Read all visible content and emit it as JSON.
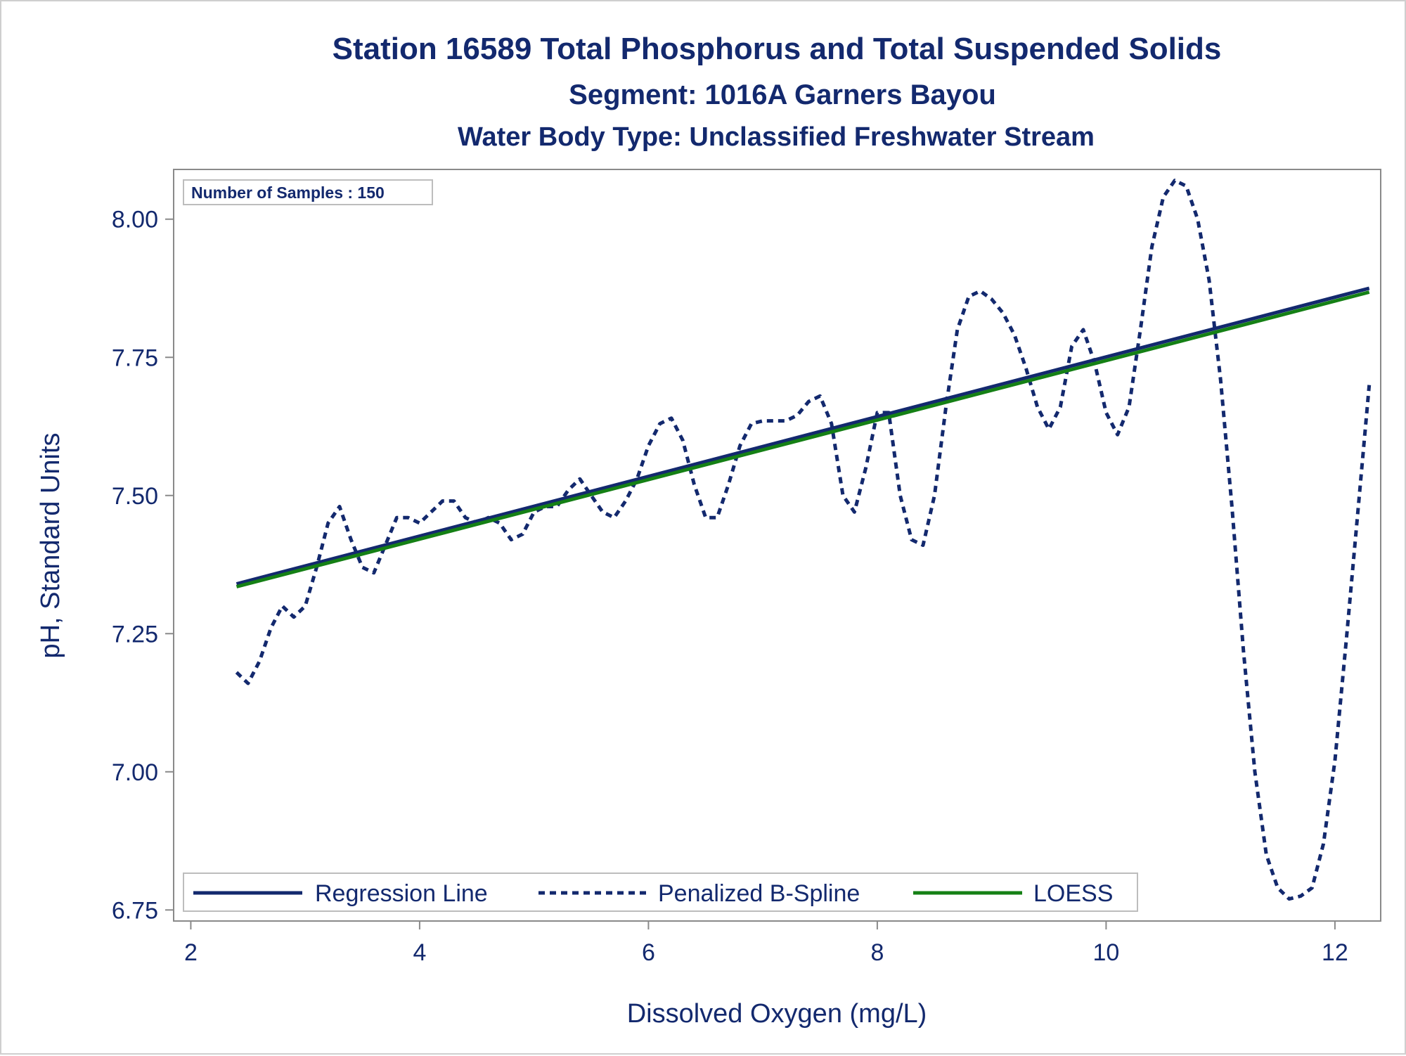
{
  "chart_data": {
    "type": "line",
    "title": "Station 16589  Total Phosphorus and Total Suspended Solids",
    "subtitle": "Segment: 1016A  Garners Bayou",
    "subtitle2": "Water Body Type: Unclassified Freshwater Stream",
    "xlabel": "Dissolved Oxygen (mg/L)",
    "ylabel": "pH, Standard Units",
    "xlim": [
      1.85,
      12.4
    ],
    "ylim": [
      6.73,
      8.09
    ],
    "x_ticks": [
      2,
      4,
      6,
      8,
      10,
      12
    ],
    "x_tick_labels": [
      "2",
      "4",
      "6",
      "8",
      "10",
      "12"
    ],
    "y_ticks": [
      6.75,
      7.0,
      7.25,
      7.5,
      7.75,
      8.0
    ],
    "y_tick_labels": [
      "6.75",
      "7.00",
      "7.25",
      "7.50",
      "7.75",
      "8.00"
    ],
    "inset_label": "Number of Samples : 150",
    "legend_position": "bottom-inside",
    "grid": false,
    "series": [
      {
        "name": "Regression Line",
        "style": "solid",
        "color": "#13296e",
        "points": [
          [
            2.4,
            7.34
          ],
          [
            12.3,
            7.875
          ]
        ]
      },
      {
        "name": "Penalized B-Spline",
        "style": "dashed",
        "color": "#13296e",
        "points": [
          [
            2.4,
            7.18
          ],
          [
            2.5,
            7.16
          ],
          [
            2.6,
            7.2
          ],
          [
            2.7,
            7.26
          ],
          [
            2.8,
            7.3
          ],
          [
            2.9,
            7.28
          ],
          [
            3.0,
            7.3
          ],
          [
            3.1,
            7.37
          ],
          [
            3.2,
            7.45
          ],
          [
            3.3,
            7.48
          ],
          [
            3.4,
            7.42
          ],
          [
            3.5,
            7.37
          ],
          [
            3.6,
            7.36
          ],
          [
            3.7,
            7.41
          ],
          [
            3.8,
            7.46
          ],
          [
            3.9,
            7.46
          ],
          [
            4.0,
            7.45
          ],
          [
            4.1,
            7.47
          ],
          [
            4.2,
            7.49
          ],
          [
            4.3,
            7.49
          ],
          [
            4.4,
            7.46
          ],
          [
            4.5,
            7.45
          ],
          [
            4.6,
            7.46
          ],
          [
            4.7,
            7.45
          ],
          [
            4.8,
            7.42
          ],
          [
            4.9,
            7.43
          ],
          [
            5.0,
            7.47
          ],
          [
            5.1,
            7.48
          ],
          [
            5.2,
            7.48
          ],
          [
            5.3,
            7.51
          ],
          [
            5.4,
            7.53
          ],
          [
            5.5,
            7.5
          ],
          [
            5.6,
            7.47
          ],
          [
            5.7,
            7.46
          ],
          [
            5.8,
            7.49
          ],
          [
            5.9,
            7.53
          ],
          [
            6.0,
            7.59
          ],
          [
            6.1,
            7.63
          ],
          [
            6.2,
            7.64
          ],
          [
            6.3,
            7.6
          ],
          [
            6.4,
            7.52
          ],
          [
            6.5,
            7.46
          ],
          [
            6.6,
            7.46
          ],
          [
            6.7,
            7.52
          ],
          [
            6.8,
            7.59
          ],
          [
            6.9,
            7.63
          ],
          [
            7.0,
            7.635
          ],
          [
            7.1,
            7.635
          ],
          [
            7.2,
            7.635
          ],
          [
            7.3,
            7.645
          ],
          [
            7.4,
            7.67
          ],
          [
            7.5,
            7.68
          ],
          [
            7.6,
            7.63
          ],
          [
            7.7,
            7.5
          ],
          [
            7.8,
            7.47
          ],
          [
            7.9,
            7.55
          ],
          [
            8.0,
            7.65
          ],
          [
            8.1,
            7.65
          ],
          [
            8.2,
            7.5
          ],
          [
            8.3,
            7.42
          ],
          [
            8.4,
            7.41
          ],
          [
            8.5,
            7.5
          ],
          [
            8.6,
            7.66
          ],
          [
            8.7,
            7.8
          ],
          [
            8.8,
            7.86
          ],
          [
            8.9,
            7.87
          ],
          [
            9.0,
            7.855
          ],
          [
            9.1,
            7.83
          ],
          [
            9.2,
            7.79
          ],
          [
            9.3,
            7.73
          ],
          [
            9.4,
            7.66
          ],
          [
            9.5,
            7.62
          ],
          [
            9.6,
            7.66
          ],
          [
            9.7,
            7.77
          ],
          [
            9.8,
            7.8
          ],
          [
            9.9,
            7.74
          ],
          [
            10.0,
            7.65
          ],
          [
            10.1,
            7.61
          ],
          [
            10.2,
            7.66
          ],
          [
            10.3,
            7.8
          ],
          [
            10.4,
            7.95
          ],
          [
            10.5,
            8.04
          ],
          [
            10.6,
            8.07
          ],
          [
            10.7,
            8.06
          ],
          [
            10.8,
            8.0
          ],
          [
            10.9,
            7.89
          ],
          [
            11.0,
            7.71
          ],
          [
            11.1,
            7.48
          ],
          [
            11.2,
            7.22
          ],
          [
            11.3,
            7.0
          ],
          [
            11.4,
            6.85
          ],
          [
            11.5,
            6.79
          ],
          [
            11.6,
            6.77
          ],
          [
            11.7,
            6.775
          ],
          [
            11.8,
            6.79
          ],
          [
            11.9,
            6.87
          ],
          [
            12.0,
            7.02
          ],
          [
            12.1,
            7.24
          ],
          [
            12.2,
            7.47
          ],
          [
            12.3,
            7.7
          ]
        ]
      },
      {
        "name": "LOESS",
        "style": "solid",
        "color": "#158015",
        "points": [
          [
            2.4,
            7.335
          ],
          [
            12.3,
            7.868
          ]
        ]
      }
    ]
  }
}
